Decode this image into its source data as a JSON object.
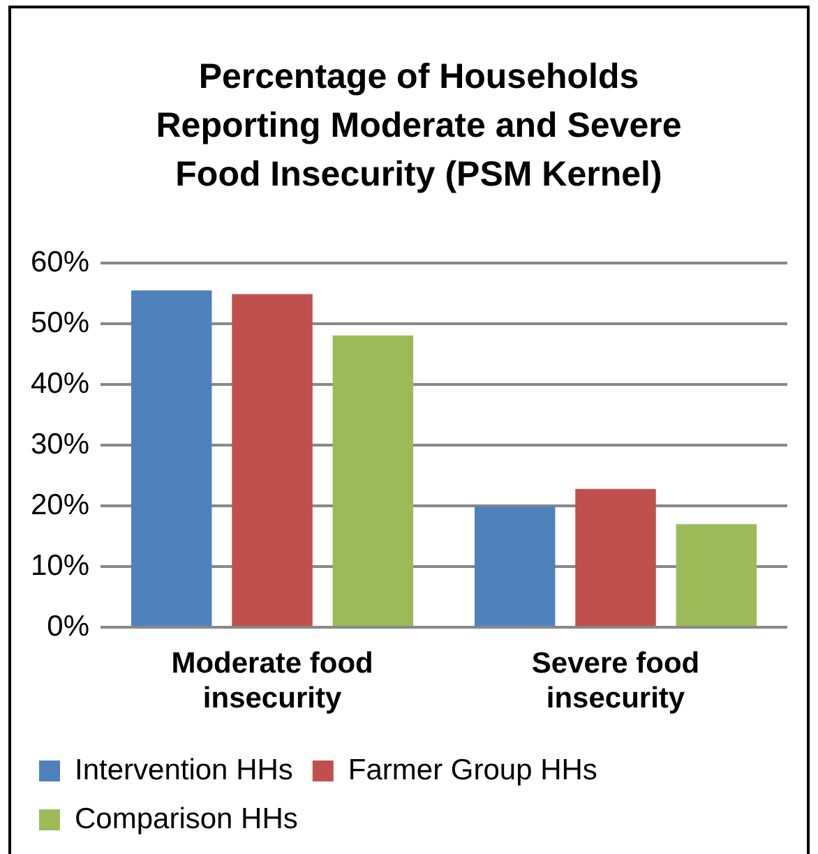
{
  "chart_data": {
    "type": "bar",
    "title": "Percentage of Households Reporting Moderate and Severe Food Insecurity (PSM Kernel)",
    "categories": [
      "Moderate food insecurity",
      "Severe food insecurity"
    ],
    "series": [
      {
        "name": "Intervention HHs",
        "color": "#4f81bd",
        "values": [
          55.5,
          19.9
        ]
      },
      {
        "name": "Farmer Group HHs",
        "color": "#c0504d",
        "values": [
          54.9,
          22.8
        ]
      },
      {
        "name": "Comparison HHs",
        "color": "#9bbb59",
        "values": [
          48.1,
          17.0
        ]
      }
    ],
    "ylim": [
      0,
      60
    ],
    "yticks": [
      {
        "value": 0,
        "label": "0%"
      },
      {
        "value": 10,
        "label": "10%"
      },
      {
        "value": 20,
        "label": "20%"
      },
      {
        "value": 30,
        "label": "30%"
      },
      {
        "value": 40,
        "label": "40%"
      },
      {
        "value": 50,
        "label": "50%"
      },
      {
        "value": 60,
        "label": "60%"
      }
    ],
    "grid": "y",
    "legend": "bottom"
  }
}
